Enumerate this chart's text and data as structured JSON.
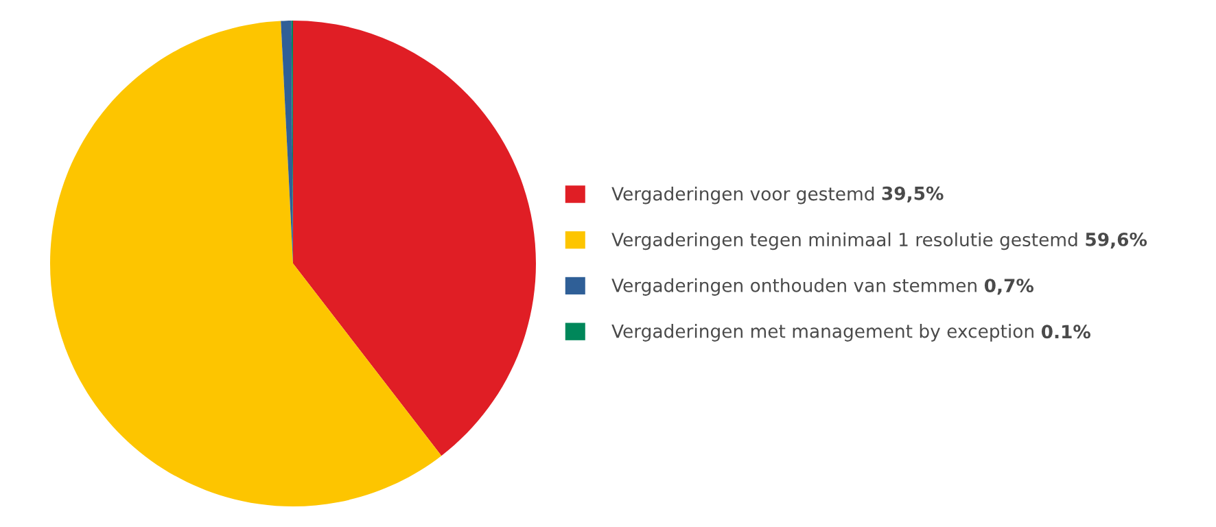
{
  "chart_data": {
    "type": "pie",
    "categories": [
      "Vergaderingen voor gestemd",
      "Vergaderingen tegen minimaal 1 resolutie gestemd",
      "Vergaderingen onthouden van stemmen",
      "Vergaderingen met management by exception"
    ],
    "values": [
      39.5,
      59.6,
      0.7,
      0.1
    ],
    "colors": [
      "#e01e25",
      "#fdc500",
      "#2f5f97",
      "#00875a"
    ],
    "value_labels": [
      "39,5%",
      "59,6%",
      "0,7%",
      "0.1%"
    ],
    "legend": "right"
  }
}
